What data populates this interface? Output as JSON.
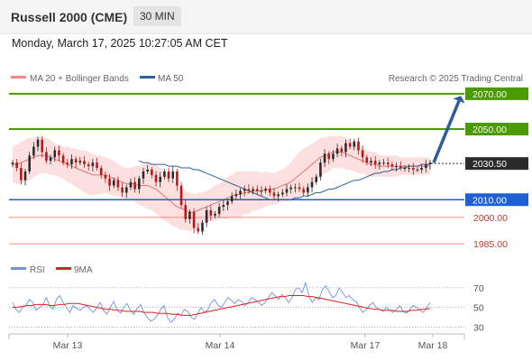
{
  "header": {
    "title": "Russell 2000 (CME)",
    "timeframe": "30 MIN"
  },
  "datetime": "Monday, March 17, 2025 10:27:05 AM CET",
  "legend": {
    "bollinger": "MA 20 + Bollinger Bands",
    "ma50": "MA 50",
    "credit": "Research © 2025 Trading Central"
  },
  "indicator_legend": {
    "rsi": "RSI",
    "ma9": "9MA"
  },
  "colors": {
    "resistance": "#4a9a00",
    "support": "#1f5fd6",
    "light_level": "#f08a8a",
    "current": "#2b2b2b",
    "arrow": "#2d5b9c",
    "bollinger_fill": "#fbd9d9",
    "ma20": "#e57373",
    "ma50": "#2f5f9e",
    "candle_up": "#2b2b2b",
    "candle_down": "#b41818",
    "rsi": "#6f93d9",
    "ma9": "#e02020"
  },
  "chart_data": [
    {
      "type": "candlestick",
      "title": "Russell 2000 (CME)",
      "x_labels": [
        "Mar 13",
        "Mar 14",
        "Mar 17",
        "Mar 18"
      ],
      "ylim": [
        1981,
        2073
      ],
      "levels": [
        {
          "value": 2070.0,
          "label": "2070.00",
          "kind": "resistance"
        },
        {
          "value": 2050.0,
          "label": "2050.00",
          "kind": "resistance"
        },
        {
          "value": 2030.5,
          "label": "2030.50",
          "kind": "current"
        },
        {
          "value": 2010.0,
          "label": "2010.00",
          "kind": "support"
        },
        {
          "value": 2000.0,
          "label": "2000.00",
          "kind": "minor"
        },
        {
          "value": 1985.0,
          "label": "1985.00",
          "kind": "minor"
        }
      ],
      "close": [
        2031,
        2028,
        2021,
        2026,
        2035,
        2040,
        2044,
        2037,
        2032,
        2034,
        2038,
        2035,
        2031,
        2030,
        2033,
        2031,
        2032,
        2030,
        2029,
        2031,
        2028,
        2024,
        2022,
        2018,
        2021,
        2017,
        2014,
        2017,
        2020,
        2016,
        2022,
        2026,
        2027,
        2024,
        2020,
        2023,
        2026,
        2022,
        2026,
        2018,
        2007,
        1999,
        2003,
        1994,
        1992,
        1997,
        2004,
        2001,
        2002,
        2006,
        2007,
        2009,
        2012,
        2013,
        2015,
        2016,
        2015,
        2016,
        2015,
        2015,
        2016,
        2014,
        2012,
        2013,
        2014,
        2016,
        2017,
        2017,
        2016,
        2014,
        2017,
        2020,
        2023,
        2031,
        2036,
        2033,
        2036,
        2039,
        2037,
        2042,
        2040,
        2043,
        2038,
        2034,
        2031,
        2032,
        2030,
        2031,
        2031,
        2030,
        2029,
        2029,
        2028,
        2028,
        2028,
        2027,
        2027,
        2028,
        2030,
        2031
      ],
      "ma20": [
        2030,
        2030,
        2031,
        2032,
        2033,
        2034,
        2035,
        2035,
        2035,
        2034,
        2033,
        2032,
        2031,
        2030,
        2029,
        2028,
        2027,
        2026,
        2025,
        2024,
        2024,
        2024,
        2024,
        2023,
        2022,
        2021,
        2020,
        2019,
        2019,
        2019,
        2018,
        2018,
        2018,
        2017,
        2016,
        2014,
        2012,
        2010,
        2008,
        2006,
        2005,
        2004,
        2003,
        2003,
        2004,
        2005,
        2006,
        2007,
        2008,
        2009,
        2010,
        2011,
        2012,
        2013,
        2013,
        2014,
        2014,
        2015,
        2015,
        2015,
        2016,
        2016,
        2016,
        2017,
        2018,
        2019,
        2020,
        2022,
        2024,
        2026,
        2028,
        2030,
        2032,
        2034,
        2035,
        2036,
        2037,
        2037,
        2037,
        2036,
        2035,
        2034,
        2033,
        2032,
        2031,
        2030,
        2030,
        2029,
        2029,
        2029,
        2029,
        2029,
        2029,
        2029,
        2029,
        2029,
        2029,
        2029,
        2029,
        2029
      ],
      "ma50": [
        2032,
        2031,
        2031,
        2030,
        2030,
        2030,
        2030,
        2029,
        2029,
        2029,
        2028,
        2028,
        2028,
        2027,
        2027,
        2026,
        2025,
        2024,
        2023,
        2022,
        2021,
        2020,
        2019,
        2018,
        2017,
        2016,
        2015,
        2014,
        2013,
        2012,
        2011,
        2010,
        2010,
        2010,
        2010,
        2010,
        2010,
        2011,
        2011,
        2012,
        2012,
        2013,
        2014,
        2014,
        2015,
        2016,
        2016,
        2017,
        2018,
        2019,
        2020,
        2021,
        2021,
        2022,
        2023,
        2024,
        2025,
        2025,
        2026,
        2026,
        2027,
        2027,
        2028,
        2028,
        2029,
        2029,
        2029,
        2030,
        2030,
        2030
      ],
      "bb_half_width": [
        10,
        11,
        12,
        12,
        12,
        11,
        11,
        10,
        10,
        10,
        9,
        9,
        9,
        10,
        10,
        11,
        11,
        12,
        12,
        12,
        11,
        11,
        10,
        10,
        10,
        9,
        9,
        9,
        9,
        10,
        11,
        12,
        13,
        13,
        14,
        14,
        14,
        13,
        13,
        12,
        12,
        11,
        11,
        10,
        10,
        9,
        9,
        9,
        10,
        10,
        11,
        12,
        12,
        13,
        13,
        12,
        12,
        11,
        11,
        10,
        10,
        9,
        9,
        9,
        9,
        10,
        11,
        12,
        13,
        13,
        12,
        12,
        11,
        11,
        10,
        10,
        9,
        9,
        9,
        9,
        8,
        8,
        8,
        7,
        7,
        7,
        7,
        6,
        6,
        6,
        6,
        6,
        5,
        5,
        5,
        5,
        5,
        5,
        5,
        5
      ]
    },
    {
      "type": "line",
      "series": [
        {
          "name": "RSI"
        },
        {
          "name": "9MA"
        }
      ],
      "ylim": [
        25,
        78
      ],
      "yticks": [
        70,
        50,
        30
      ],
      "rsi": [
        55,
        48,
        45,
        50,
        52,
        58,
        55,
        47,
        50,
        53,
        60,
        52,
        48,
        58,
        62,
        55,
        50,
        45,
        52,
        49,
        47,
        50,
        52,
        48,
        45,
        50,
        55,
        47,
        43,
        50,
        56,
        48,
        44,
        50,
        54,
        47,
        43,
        49,
        53,
        45,
        40,
        36,
        38,
        42,
        48,
        52,
        40,
        35,
        38,
        44,
        42,
        48,
        46,
        40,
        38,
        44,
        50,
        45,
        48,
        55,
        58,
        52,
        50,
        55,
        60,
        57,
        54,
        58,
        56,
        52,
        55,
        60,
        58,
        55,
        52,
        55,
        60,
        65,
        62,
        58,
        63,
        60,
        55,
        60,
        68,
        70,
        65,
        75,
        62,
        55,
        60,
        58,
        68,
        72,
        66,
        60,
        62,
        70,
        65,
        60,
        62,
        58,
        56,
        50,
        45,
        48,
        52,
        55,
        50,
        48,
        46,
        50,
        47,
        45,
        48,
        52,
        46,
        44,
        48,
        52,
        50,
        47,
        45,
        50,
        55
      ],
      "ma9": [
        50,
        50,
        51,
        52,
        52,
        53,
        53,
        53,
        52,
        52,
        53,
        53,
        54,
        54,
        54,
        53,
        52,
        51,
        50,
        49,
        48,
        48,
        47,
        47,
        46,
        46,
        46,
        46,
        45,
        45,
        45,
        44,
        44,
        44,
        43,
        43,
        42,
        42,
        42,
        43,
        44,
        45,
        46,
        47,
        48,
        49,
        50,
        51,
        52,
        53,
        54,
        55,
        56,
        57,
        58,
        59,
        60,
        61,
        61,
        62,
        62,
        62,
        62,
        61,
        61,
        60,
        59,
        58,
        57,
        56,
        55,
        54,
        53,
        52,
        51,
        50,
        49,
        48,
        48,
        47,
        47,
        47,
        46,
        46,
        46,
        47,
        47,
        48,
        48,
        49
      ]
    }
  ]
}
